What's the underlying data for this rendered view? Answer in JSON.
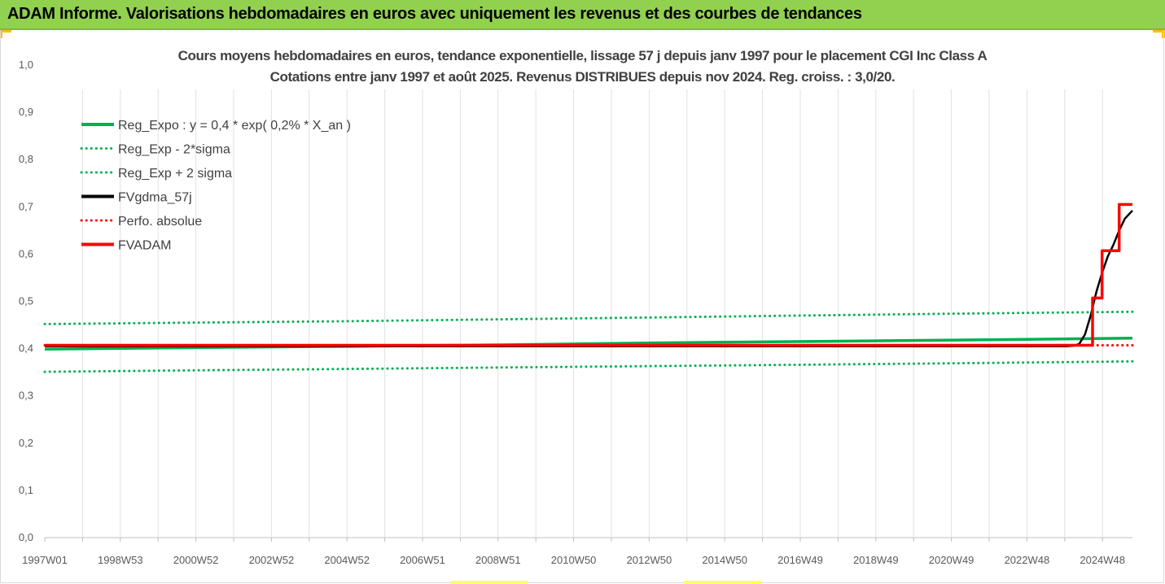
{
  "header": {
    "title": "ADAM Informe. Valorisations hebdomadaires en euros avec uniquement les revenus et des courbes de tendances"
  },
  "colors": {
    "header_bg": "#92d050",
    "green": "#00b050",
    "black": "#000000",
    "red": "#ff0000",
    "accent": "#ffc000"
  },
  "chart_data": {
    "type": "line",
    "title": "Cours moyens hebdomadaires en euros, tendance exponentielle, lissage 57 j depuis janv 1997 pour le placement CGI Inc Class A",
    "subtitle": "Cotations entre janv 1997 et août 2025. Revenus DISTRIBUES depuis nov 2024. Reg. croiss. : 3,0/20.",
    "xlabel": "",
    "ylabel": "",
    "ylim": [
      0,
      1
    ],
    "yticks": [
      "0,0",
      "0,1",
      "0,2",
      "0,3",
      "0,4",
      "0,5",
      "0,6",
      "0,7",
      "0,8",
      "0,9",
      "1,0"
    ],
    "xticks": [
      "1997W01",
      "1998W53",
      "2000W52",
      "2002W52",
      "2004W52",
      "2006W51",
      "2008W51",
      "2010W50",
      "2012W50",
      "2014W50",
      "2016W49",
      "2018W49",
      "2020W49",
      "2022W48",
      "2024W48"
    ],
    "xlim": [
      1997.0,
      2025.65
    ],
    "grid": "vertical",
    "legend_position": "top-left",
    "series": [
      {
        "name": "Reg_Expo : y = 0,4 * exp( 0,2% *  X_an )",
        "color": "#00b050",
        "style": "solid",
        "x": [
          1997.0,
          2001.0,
          2005.0,
          2009.0,
          2013.0,
          2017.0,
          2021.0,
          2025.65
        ],
        "y": [
          0.399,
          0.402,
          0.405,
          0.408,
          0.412,
          0.415,
          0.418,
          0.422
        ]
      },
      {
        "name": "Reg_Exp - 2*sigma",
        "color": "#00b050",
        "style": "dotted",
        "x": [
          1997.0,
          2001.0,
          2005.0,
          2009.0,
          2013.0,
          2017.0,
          2021.0,
          2025.65
        ],
        "y": [
          0.351,
          0.354,
          0.357,
          0.36,
          0.363,
          0.366,
          0.369,
          0.373
        ]
      },
      {
        "name": "Reg_Exp + 2 sigma",
        "color": "#00b050",
        "style": "dotted",
        "x": [
          1997.0,
          2001.0,
          2005.0,
          2009.0,
          2013.0,
          2017.0,
          2021.0,
          2025.65
        ],
        "y": [
          0.452,
          0.455,
          0.458,
          0.462,
          0.466,
          0.47,
          0.474,
          0.478
        ]
      },
      {
        "name": "FVgdma_57j",
        "color": "#000000",
        "style": "solid",
        "x": [
          1997.0,
          2023.9,
          2024.1,
          2024.25,
          2024.4,
          2024.55,
          2024.7,
          2024.85,
          2025.0,
          2025.15,
          2025.3,
          2025.45,
          2025.65
        ],
        "y": [
          0.405,
          0.405,
          0.406,
          0.41,
          0.43,
          0.47,
          0.52,
          0.56,
          0.595,
          0.62,
          0.65,
          0.675,
          0.692
        ]
      },
      {
        "name": "Perfo. absolue",
        "color": "#ff0000",
        "style": "dotted",
        "x": [
          1997.0,
          2025.65
        ],
        "y": [
          0.407,
          0.407
        ]
      },
      {
        "name": "FVADAM",
        "color": "#ff0000",
        "style": "solid",
        "x": [
          1997.0,
          2024.35,
          2024.35,
          2024.6,
          2024.6,
          2024.85,
          2024.85,
          2025.1,
          2025.1,
          2025.3,
          2025.3,
          2025.65
        ],
        "y": [
          0.407,
          0.407,
          0.407,
          0.407,
          0.507,
          0.507,
          0.607,
          0.607,
          0.607,
          0.607,
          0.705,
          0.705
        ]
      }
    ]
  }
}
